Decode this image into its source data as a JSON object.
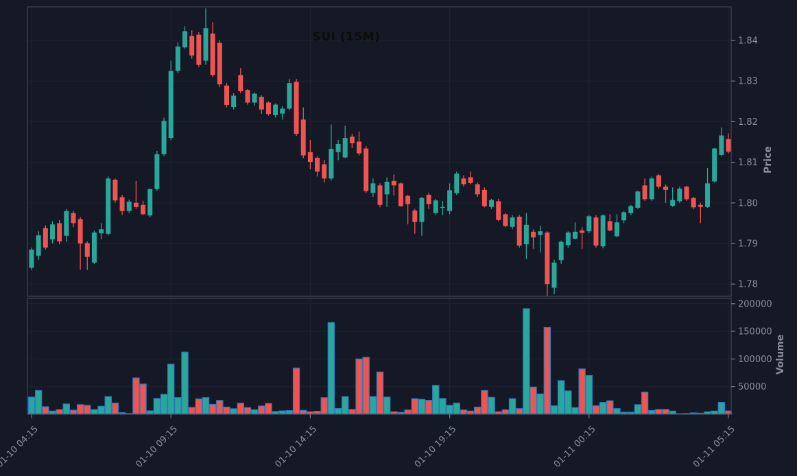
{
  "title": "SUI (15M)",
  "axes": {
    "price_label": "Price",
    "volume_label": "Volume",
    "price_ticks": [
      "1.84",
      "1.83",
      "1.82",
      "1.81",
      "1.80",
      "1.79",
      "1.78"
    ],
    "volume_ticks": [
      "200000",
      "150000",
      "100000",
      "50000"
    ],
    "time_ticks": [
      "01-10 04:15",
      "01-10 09:15",
      "01-10 14:15",
      "01-10 19:15",
      "01-11 00:15",
      "01-11 05:15"
    ]
  },
  "colors": {
    "background": "#141925",
    "up": "#2aa79b",
    "down": "#f05452",
    "volume_edge": "#2b7cc2",
    "grid": "#1e2331",
    "frame": "#3d4454",
    "tick_mark": "#767a84",
    "tick_text": "#8b8f9b",
    "title_text": "#0c0c0c"
  },
  "chart_data": {
    "type": "candlestick+volume",
    "symbol": "SUI",
    "interval": "15M",
    "title": "SUI (15M)",
    "time_start": "01-10 04:15",
    "time_end": "01-11 05:15",
    "candles_per_tick": 20,
    "ylim_price": [
      1.777,
      1.848
    ],
    "ylim_volume": [
      0,
      205000
    ],
    "columns": [
      "open",
      "high",
      "low",
      "close",
      "volume"
    ],
    "candles": [
      [
        1.784,
        1.789,
        1.7835,
        1.7885,
        31000
      ],
      [
        1.787,
        1.793,
        1.786,
        1.792,
        43000
      ],
      [
        1.7938,
        1.7945,
        1.7885,
        1.789,
        13600
      ],
      [
        1.791,
        1.7955,
        1.79,
        1.7947,
        5800
      ],
      [
        1.795,
        1.7958,
        1.7898,
        1.7905,
        8300
      ],
      [
        1.7919,
        1.7985,
        1.7905,
        1.798,
        18600
      ],
      [
        1.7975,
        1.798,
        1.794,
        1.795,
        7400
      ],
      [
        1.796,
        1.7965,
        1.7835,
        1.79,
        17400
      ],
      [
        1.7901,
        1.7905,
        1.7835,
        1.7867,
        16100
      ],
      [
        1.7853,
        1.7932,
        1.785,
        1.7927,
        8300
      ],
      [
        1.7925,
        1.795,
        1.791,
        1.7935,
        14500
      ],
      [
        1.7924,
        1.8065,
        1.792,
        1.806,
        31900
      ],
      [
        1.8057,
        1.806,
        1.8,
        1.8006,
        20200
      ],
      [
        1.8014,
        1.802,
        1.797,
        1.798,
        2900
      ],
      [
        1.798,
        1.8008,
        1.7975,
        1.8003,
        1500
      ],
      [
        1.8,
        1.8054,
        1.7985,
        1.799,
        65700
      ],
      [
        1.7995,
        1.8005,
        1.797,
        1.7972,
        54600
      ],
      [
        1.7969,
        1.8035,
        1.7965,
        1.8034,
        6200
      ],
      [
        1.8034,
        1.8128,
        1.803,
        1.812,
        28500
      ],
      [
        1.812,
        1.821,
        1.8115,
        1.8202,
        36000
      ],
      [
        1.816,
        1.835,
        1.8155,
        1.8325,
        90500
      ],
      [
        1.8325,
        1.8395,
        1.832,
        1.8385,
        30100
      ],
      [
        1.8383,
        1.8435,
        1.838,
        1.8423,
        112500
      ],
      [
        1.8411,
        1.8425,
        1.8355,
        1.8363,
        12400
      ],
      [
        1.8414,
        1.842,
        1.8335,
        1.834,
        27700
      ],
      [
        1.835,
        1.8479,
        1.834,
        1.843,
        30100
      ],
      [
        1.8417,
        1.8445,
        1.831,
        1.8315,
        18000
      ],
      [
        1.8394,
        1.84,
        1.8285,
        1.8292,
        25000
      ],
      [
        1.8289,
        1.8295,
        1.8235,
        1.8241,
        13000
      ],
      [
        1.8236,
        1.827,
        1.823,
        1.8264,
        10000
      ],
      [
        1.8315,
        1.8332,
        1.827,
        1.8275,
        20000
      ],
      [
        1.8278,
        1.828,
        1.8242,
        1.8247,
        12000
      ],
      [
        1.8247,
        1.8272,
        1.824,
        1.8269,
        8000
      ],
      [
        1.8261,
        1.8265,
        1.8219,
        1.823,
        15000
      ],
      [
        1.8247,
        1.825,
        1.8215,
        1.8219,
        19500
      ],
      [
        1.8216,
        1.8245,
        1.821,
        1.8242,
        5000
      ],
      [
        1.822,
        1.8238,
        1.8205,
        1.8232,
        6000
      ],
      [
        1.8232,
        1.8305,
        1.8228,
        1.8295,
        6600
      ],
      [
        1.8298,
        1.8305,
        1.8165,
        1.817,
        83500
      ],
      [
        1.8205,
        1.8235,
        1.811,
        1.8117,
        7000
      ],
      [
        1.8125,
        1.8155,
        1.8083,
        1.8101,
        4500
      ],
      [
        1.8111,
        1.8115,
        1.8065,
        1.8077,
        5500
      ],
      [
        1.8095,
        1.8106,
        1.805,
        1.806,
        30000
      ],
      [
        1.806,
        1.8193,
        1.8055,
        1.8133,
        166000
      ],
      [
        1.8125,
        1.8155,
        1.8105,
        1.8145,
        10500
      ],
      [
        1.8112,
        1.819,
        1.811,
        1.816,
        31900
      ],
      [
        1.8163,
        1.817,
        1.8135,
        1.8147,
        8700
      ],
      [
        1.8151,
        1.8176,
        1.8117,
        1.8122,
        100000
      ],
      [
        1.8134,
        1.814,
        1.8025,
        1.8029,
        103000
      ],
      [
        1.8025,
        1.806,
        1.8015,
        1.8048,
        31900
      ],
      [
        1.8043,
        1.8048,
        1.7989,
        1.7995,
        76500
      ],
      [
        1.8021,
        1.8063,
        1.799,
        1.8052,
        31000
      ],
      [
        1.8054,
        1.807,
        1.8018,
        1.8043,
        4600
      ],
      [
        1.8048,
        1.805,
        1.799,
        1.7992,
        3500
      ],
      [
        1.8017,
        1.802,
        1.7947,
        1.7997,
        7800
      ],
      [
        1.7981,
        1.7985,
        1.7924,
        1.7953,
        28100
      ],
      [
        1.7953,
        1.8015,
        1.7919,
        1.8012,
        26900
      ],
      [
        1.802,
        1.8025,
        1.7985,
        1.7997,
        25300
      ],
      [
        1.7975,
        1.801,
        1.797,
        1.8006,
        52300
      ],
      [
        1.7989,
        1.8005,
        1.797,
        1.799,
        28500
      ],
      [
        1.798,
        1.8048,
        1.7972,
        1.8031,
        16100
      ],
      [
        1.8024,
        1.8077,
        1.802,
        1.8072,
        20200
      ],
      [
        1.806,
        1.8068,
        1.804,
        1.8046,
        7800
      ],
      [
        1.8063,
        1.8077,
        1.8045,
        1.8049,
        5800
      ],
      [
        1.8046,
        1.805,
        1.8015,
        1.8021,
        13000
      ],
      [
        1.8032,
        1.8038,
        1.7989,
        1.7992,
        43000
      ],
      [
        1.799,
        1.801,
        1.7985,
        1.8007,
        30600
      ],
      [
        1.8004,
        1.801,
        1.7955,
        1.7958,
        4600
      ],
      [
        1.7972,
        1.7975,
        1.794,
        1.7943,
        8000
      ],
      [
        1.7941,
        1.797,
        1.7935,
        1.7964,
        28000
      ],
      [
        1.7966,
        1.797,
        1.789,
        1.7895,
        10300
      ],
      [
        1.7898,
        1.7975,
        1.7862,
        1.7946,
        191000
      ],
      [
        1.7929,
        1.7935,
        1.7887,
        1.7915,
        49200
      ],
      [
        1.7921,
        1.7944,
        1.7878,
        1.793,
        36800
      ],
      [
        1.7927,
        1.793,
        1.7771,
        1.78,
        157000
      ],
      [
        1.7791,
        1.786,
        1.7775,
        1.7853,
        15300
      ],
      [
        1.7859,
        1.7907,
        1.785,
        1.7904,
        60800
      ],
      [
        1.7896,
        1.793,
        1.789,
        1.7927,
        42200
      ],
      [
        1.7912,
        1.7952,
        1.791,
        1.7929,
        12000
      ],
      [
        1.7932,
        1.794,
        1.7887,
        1.7926,
        82000
      ],
      [
        1.793,
        1.797,
        1.7925,
        1.7967,
        70000
      ],
      [
        1.7964,
        1.797,
        1.789,
        1.7895,
        15300
      ],
      [
        1.7893,
        1.7972,
        1.7888,
        1.7969,
        21500
      ],
      [
        1.7955,
        1.7972,
        1.793,
        1.7932,
        24400
      ],
      [
        1.7918,
        1.7972,
        1.7915,
        1.7952,
        10300
      ],
      [
        1.7957,
        1.798,
        1.795,
        1.7977,
        3700
      ],
      [
        1.7975,
        1.7995,
        1.797,
        1.7992,
        3700
      ],
      [
        1.7988,
        1.803,
        1.7985,
        1.8028,
        17400
      ],
      [
        1.8043,
        1.806,
        1.8005,
        1.8009,
        40000
      ],
      [
        1.8009,
        1.8065,
        1.8005,
        1.806,
        6900
      ],
      [
        1.8068,
        1.8071,
        1.8035,
        1.804,
        8700
      ],
      [
        1.804,
        1.8045,
        1.8,
        1.8032,
        8700
      ],
      [
        1.7993,
        1.8038,
        1.799,
        1.8007,
        5800
      ],
      [
        1.8004,
        1.804,
        1.8,
        1.8035,
        1200
      ],
      [
        1.804,
        1.8042,
        1.8005,
        1.8009,
        1500
      ],
      [
        1.8012,
        1.8015,
        1.7985,
        1.7989,
        2500
      ],
      [
        1.7995,
        1.8,
        1.795,
        1.799,
        2000
      ],
      [
        1.799,
        1.8086,
        1.7988,
        1.8048,
        4500
      ],
      [
        1.8053,
        1.8135,
        1.805,
        1.8134,
        5800
      ],
      [
        1.8118,
        1.8186,
        1.8115,
        1.8166,
        21500
      ],
      [
        1.8157,
        1.8171,
        1.8122,
        1.8126,
        6000
      ]
    ]
  }
}
